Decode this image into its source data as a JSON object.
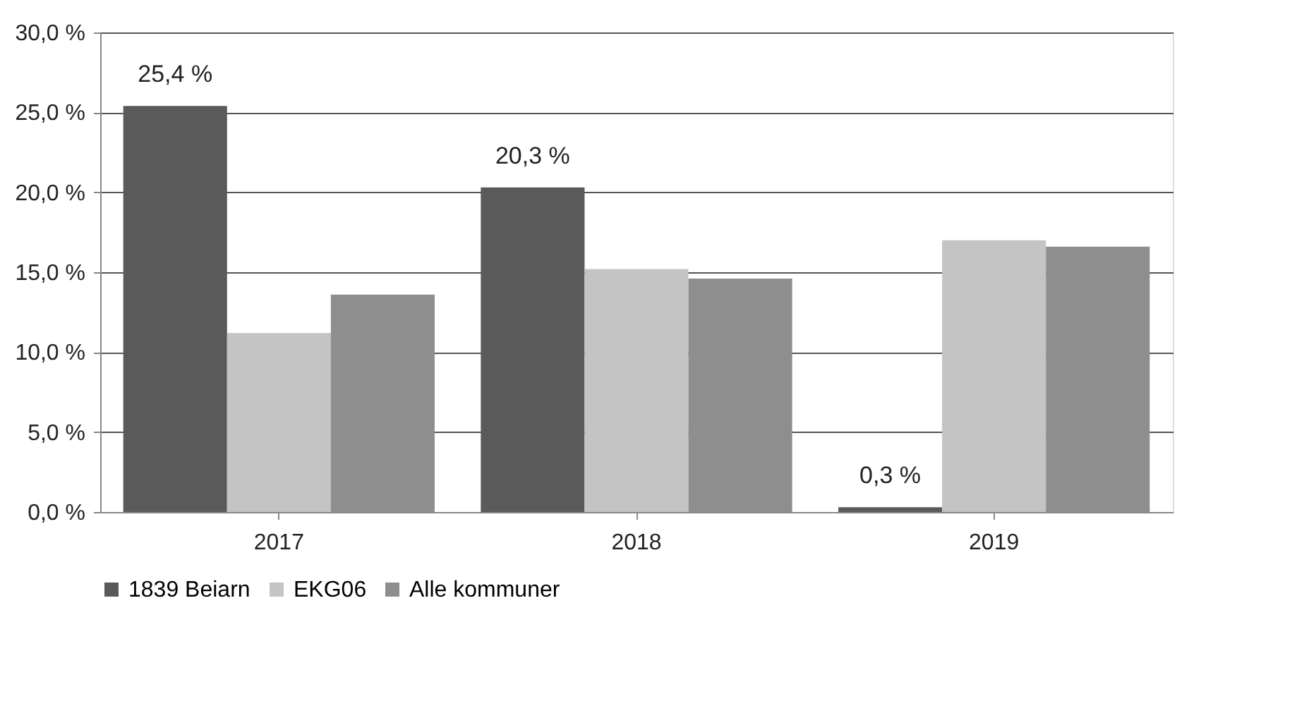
{
  "chart_data": {
    "type": "bar",
    "categories": [
      "2017",
      "2018",
      "2019"
    ],
    "series": [
      {
        "name": "1839 Beiarn",
        "color": "#5a5a5a",
        "values": [
          25.4,
          20.3,
          0.3
        ],
        "value_labels": [
          "25,4 %",
          "20,3 %",
          "0,3 %"
        ]
      },
      {
        "name": "EKG06",
        "color": "#c4c4c4",
        "values": [
          11.2,
          15.2,
          17.0
        ]
      },
      {
        "name": "Alle kommuner",
        "color": "#8e8e8e",
        "values": [
          13.6,
          14.6,
          16.6
        ]
      }
    ],
    "ylim": [
      0,
      30
    ],
    "yticks": [
      {
        "value": 0,
        "label": "0,0 %"
      },
      {
        "value": 5,
        "label": "5,0 %"
      },
      {
        "value": 10,
        "label": "10,0 %"
      },
      {
        "value": 15,
        "label": "15,0 %"
      },
      {
        "value": 20,
        "label": "20,0 %"
      },
      {
        "value": 25,
        "label": "25,0 %"
      },
      {
        "value": 30,
        "label": "30,0 %"
      }
    ],
    "grid": "y",
    "legend": "bottom"
  }
}
